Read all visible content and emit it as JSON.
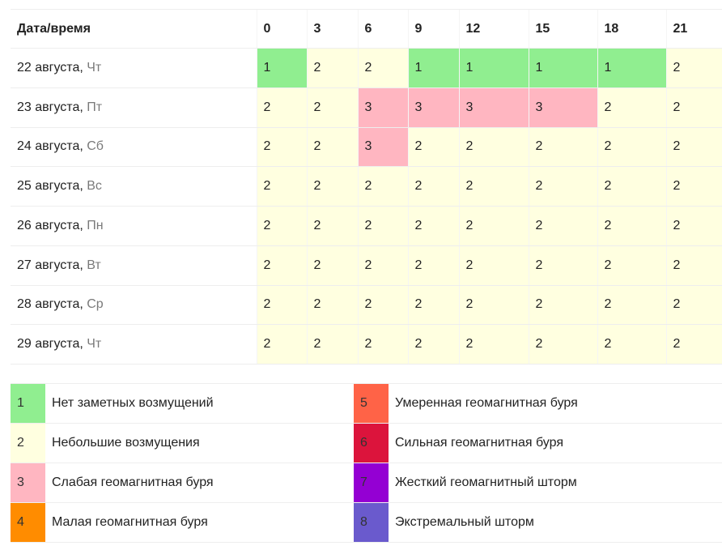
{
  "forecast": {
    "header_label": "Дата/время",
    "hours": [
      "0",
      "3",
      "6",
      "9",
      "12",
      "15",
      "18",
      "21"
    ],
    "rows": [
      {
        "date": "22 августа,",
        "weekday": "Чт",
        "values": [
          "1",
          "2",
          "2",
          "1",
          "1",
          "1",
          "1",
          "2"
        ]
      },
      {
        "date": "23 августа,",
        "weekday": "Пт",
        "values": [
          "2",
          "2",
          "3",
          "3",
          "3",
          "3",
          "2",
          "2"
        ]
      },
      {
        "date": "24 августа,",
        "weekday": "Сб",
        "values": [
          "2",
          "2",
          "3",
          "2",
          "2",
          "2",
          "2",
          "2"
        ]
      },
      {
        "date": "25 августа,",
        "weekday": "Вс",
        "values": [
          "2",
          "2",
          "2",
          "2",
          "2",
          "2",
          "2",
          "2"
        ]
      },
      {
        "date": "26 августа,",
        "weekday": "Пн",
        "values": [
          "2",
          "2",
          "2",
          "2",
          "2",
          "2",
          "2",
          "2"
        ]
      },
      {
        "date": "27 августа,",
        "weekday": "Вт",
        "values": [
          "2",
          "2",
          "2",
          "2",
          "2",
          "2",
          "2",
          "2"
        ]
      },
      {
        "date": "28 августа,",
        "weekday": "Ср",
        "values": [
          "2",
          "2",
          "2",
          "2",
          "2",
          "2",
          "2",
          "2"
        ]
      },
      {
        "date": "29 августа,",
        "weekday": "Чт",
        "values": [
          "2",
          "2",
          "2",
          "2",
          "2",
          "2",
          "2",
          "2"
        ]
      }
    ]
  },
  "levels": {
    "1": {
      "color": "#90ee90",
      "label": "Нет заметных возмущений"
    },
    "2": {
      "color": "#ffffe0",
      "label": "Небольшие возмущения"
    },
    "3": {
      "color": "#ffb6c1",
      "label": "Слабая геомагнитная буря"
    },
    "4": {
      "color": "#ff8c00",
      "label": "Малая геомагнитная буря"
    },
    "5": {
      "color": "#ff6347",
      "label": "Умеренная геомагнитная буря"
    },
    "6": {
      "color": "#dc143c",
      "label": "Сильная геомагнитная буря"
    },
    "7": {
      "color": "#9400d3",
      "label": "Жесткий геомагнитный шторм"
    },
    "8": {
      "color": "#6a5acd",
      "label": "Экстремальный шторм"
    }
  },
  "legend": {
    "left_column": [
      "1",
      "2",
      "3",
      "4"
    ],
    "right_column": [
      "5",
      "6",
      "7",
      "8"
    ]
  }
}
